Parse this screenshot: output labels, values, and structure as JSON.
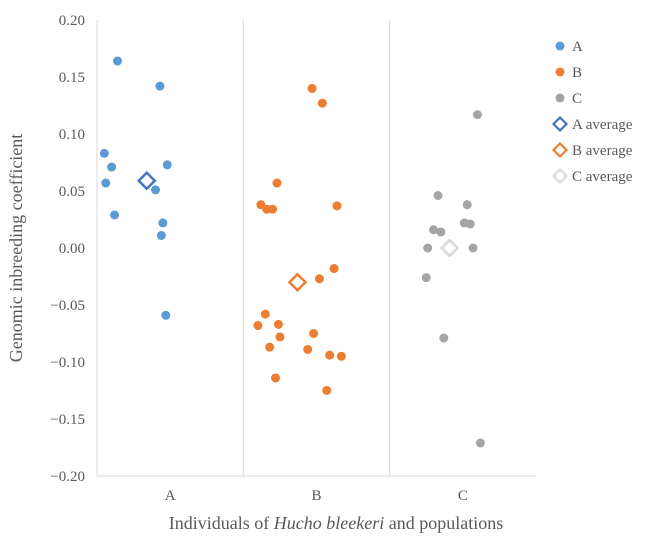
{
  "chart_data": {
    "type": "scatter",
    "title": "",
    "xlabel": {
      "prefix": "Individuals of ",
      "species": "Hucho bleekeri",
      "suffix": " and populations"
    },
    "ylabel": "Genomic inbreeding coefficient",
    "ylim": [
      -0.2,
      0.2
    ],
    "y_ticks": [
      "0.20",
      "0.15",
      "0.10",
      "0.05",
      "0.00",
      "−0.05",
      "−0.10",
      "−0.15",
      "−0.20"
    ],
    "categories": [
      "A",
      "B",
      "C"
    ],
    "grid": "vertical category separators",
    "legend_position": "right",
    "series": [
      {
        "name": "A",
        "color": "#5B9BD5",
        "marker": "filled-circle",
        "points": [
          {
            "x": 0.64,
            "y": 0.164
          },
          {
            "x": 0.93,
            "y": 0.142
          },
          {
            "x": 0.55,
            "y": 0.083
          },
          {
            "x": 0.98,
            "y": 0.073
          },
          {
            "x": 0.6,
            "y": 0.071
          },
          {
            "x": 0.56,
            "y": 0.057
          },
          {
            "x": 0.9,
            "y": 0.051
          },
          {
            "x": 0.62,
            "y": 0.029
          },
          {
            "x": 0.95,
            "y": 0.022
          },
          {
            "x": 0.94,
            "y": 0.011
          },
          {
            "x": 0.97,
            "y": -0.059
          }
        ]
      },
      {
        "name": "B",
        "color": "#ED7D31",
        "marker": "filled-circle",
        "points": [
          {
            "x": 1.97,
            "y": 0.14
          },
          {
            "x": 2.04,
            "y": 0.127
          },
          {
            "x": 1.73,
            "y": 0.057
          },
          {
            "x": 1.62,
            "y": 0.038
          },
          {
            "x": 2.14,
            "y": 0.037
          },
          {
            "x": 1.66,
            "y": 0.034
          },
          {
            "x": 1.7,
            "y": 0.034
          },
          {
            "x": 2.12,
            "y": -0.018
          },
          {
            "x": 2.02,
            "y": -0.027
          },
          {
            "x": 1.65,
            "y": -0.058
          },
          {
            "x": 1.6,
            "y": -0.068
          },
          {
            "x": 1.74,
            "y": -0.067
          },
          {
            "x": 1.98,
            "y": -0.075
          },
          {
            "x": 1.75,
            "y": -0.078
          },
          {
            "x": 1.68,
            "y": -0.087
          },
          {
            "x": 1.94,
            "y": -0.089
          },
          {
            "x": 2.09,
            "y": -0.094
          },
          {
            "x": 2.17,
            "y": -0.095
          },
          {
            "x": 1.72,
            "y": -0.114
          },
          {
            "x": 2.07,
            "y": -0.125
          }
        ]
      },
      {
        "name": "C",
        "color": "#A5A5A5",
        "marker": "filled-circle",
        "points": [
          {
            "x": 3.1,
            "y": 0.117
          },
          {
            "x": 2.83,
            "y": 0.046
          },
          {
            "x": 3.03,
            "y": 0.038
          },
          {
            "x": 3.01,
            "y": 0.022
          },
          {
            "x": 3.05,
            "y": 0.021
          },
          {
            "x": 2.8,
            "y": 0.016
          },
          {
            "x": 2.85,
            "y": 0.014
          },
          {
            "x": 2.76,
            "y": 0.0
          },
          {
            "x": 3.07,
            "y": 0.0
          },
          {
            "x": 2.75,
            "y": -0.026
          },
          {
            "x": 2.87,
            "y": -0.079
          },
          {
            "x": 3.12,
            "y": -0.171
          }
        ]
      },
      {
        "name": "A average",
        "color": "#4472C4",
        "marker": "open-diamond",
        "points": [
          {
            "x": 0.84,
            "y": 0.059
          }
        ]
      },
      {
        "name": "B average",
        "color": "#ED7D31",
        "marker": "open-diamond",
        "points": [
          {
            "x": 1.87,
            "y": -0.03
          }
        ]
      },
      {
        "name": "C average",
        "color": "#D9D9D9",
        "marker": "open-diamond",
        "points": [
          {
            "x": 2.91,
            "y": 0.0
          }
        ]
      }
    ]
  }
}
